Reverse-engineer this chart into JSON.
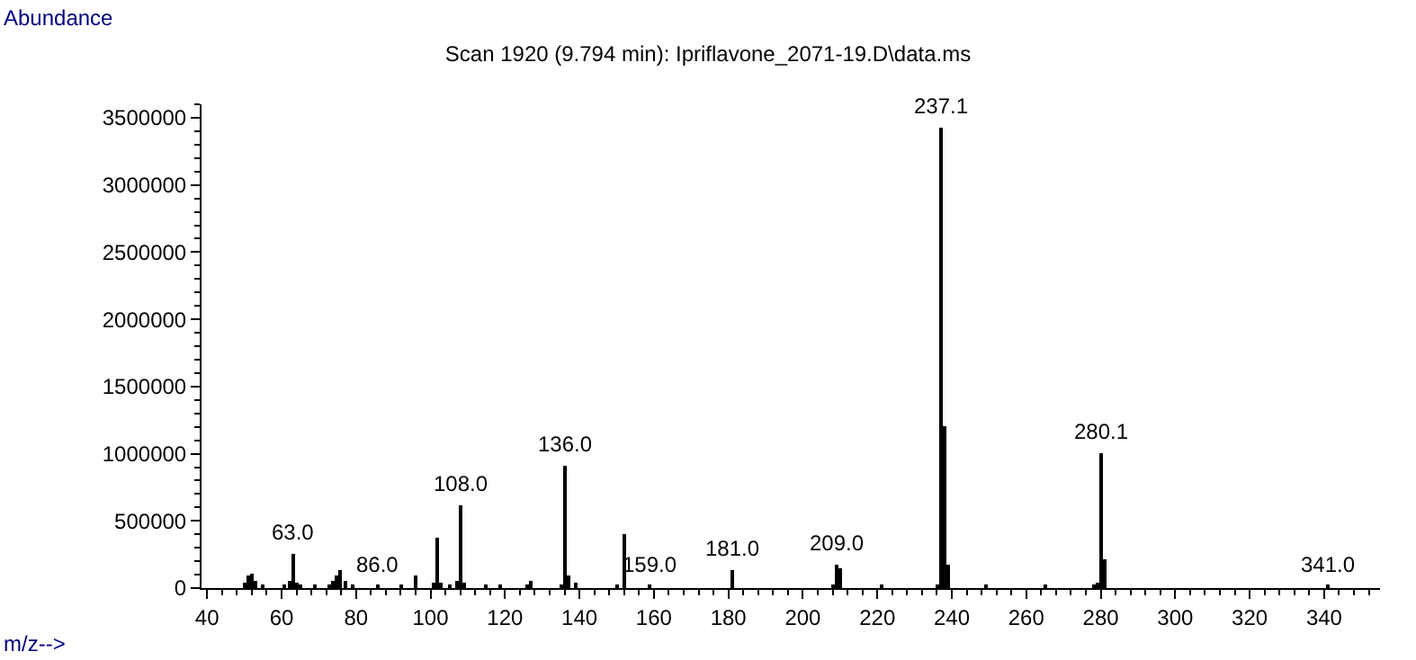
{
  "chart_data": {
    "type": "bar",
    "title": "Scan 1920 (9.794 min): Ipriflavone_2071-19.D\\data.ms",
    "xlabel": "m/z-->",
    "ylabel": "Abundance",
    "x": [
      50,
      51,
      52,
      53,
      55,
      61,
      62,
      63,
      64,
      65,
      69,
      73,
      74,
      75,
      76,
      77,
      79,
      86,
      92,
      96,
      101,
      102,
      103,
      105,
      107,
      108,
      109,
      115,
      119,
      126,
      127,
      135,
      136,
      137,
      139,
      150,
      152,
      159,
      181,
      208,
      209,
      210,
      221,
      236,
      237,
      238,
      239,
      249,
      265,
      278,
      279,
      280,
      281,
      341
    ],
    "values": [
      40000,
      100000,
      110000,
      50000,
      20000,
      20000,
      50000,
      250000,
      40000,
      20000,
      20000,
      30000,
      60000,
      90000,
      130000,
      60000,
      30000,
      20000,
      20000,
      90000,
      40000,
      380000,
      40000,
      30000,
      50000,
      610000,
      40000,
      20000,
      30000,
      30000,
      50000,
      30000,
      910000,
      90000,
      40000,
      30000,
      400000,
      20000,
      130000,
      30000,
      170000,
      150000,
      20000,
      30000,
      3430000,
      1200000,
      170000,
      20000,
      20000,
      20000,
      40000,
      1000000,
      210000,
      20000
    ],
    "color": "#000000",
    "xlim": [
      38.5,
      355
    ],
    "xticks": [
      40,
      60,
      80,
      100,
      120,
      140,
      160,
      180,
      200,
      220,
      240,
      260,
      280,
      300,
      320,
      340
    ],
    "ylim": [
      0,
      3600000
    ],
    "yticks": [
      0,
      500000,
      1000000,
      1500000,
      2000000,
      2500000,
      3000000,
      3500000
    ],
    "annotations": [
      {
        "text": "63.0",
        "x": 63,
        "y": 250000
      },
      {
        "text": "86.0",
        "x": 86,
        "y": 20000
      },
      {
        "text": "108.0",
        "x": 108,
        "y": 610000
      },
      {
        "text": "136.0",
        "x": 136,
        "y": 910000
      },
      {
        "text": "159.0",
        "x": 159,
        "y": 20000
      },
      {
        "text": "181.0",
        "x": 181,
        "y": 130000
      },
      {
        "text": "209.0",
        "x": 209,
        "y": 170000
      },
      {
        "text": "237.1",
        "x": 237,
        "y": 3430000
      },
      {
        "text": "280.1",
        "x": 280,
        "y": 1000000
      },
      {
        "text": "341.0",
        "x": 341,
        "y": 20000
      }
    ]
  }
}
